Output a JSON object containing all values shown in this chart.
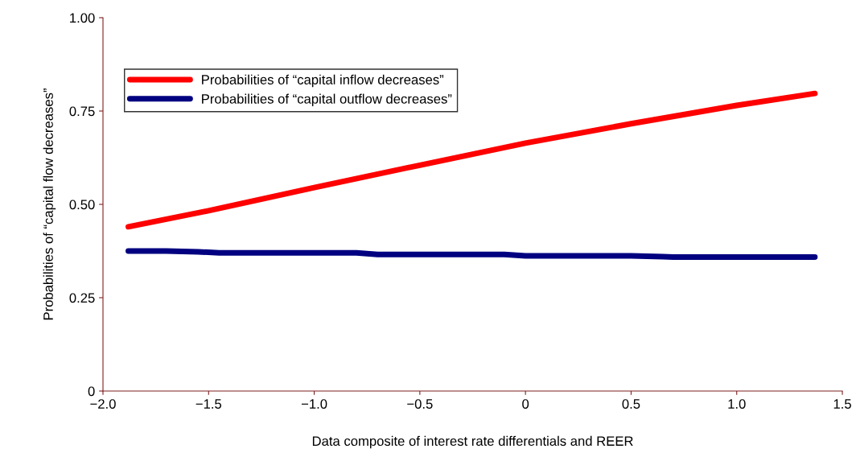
{
  "chart_data": {
    "type": "line",
    "xlabel": "Data composite of interest rate differentials and REER",
    "ylabel": "Probabilities of “capital flow decreases”",
    "xlim": [
      -2.0,
      1.5
    ],
    "xticks": [
      {
        "value": -2.0,
        "label": "−2.0"
      },
      {
        "value": -1.5,
        "label": "−1.5"
      },
      {
        "value": -1.0,
        "label": "−1.0"
      },
      {
        "value": -0.5,
        "label": "−0.5"
      },
      0,
      {
        "value": 0.5,
        "label": "0.5"
      },
      {
        "value": 1.0,
        "label": "1.0"
      },
      {
        "value": 1.5,
        "label": "1.5"
      }
    ],
    "ylim": [
      0,
      1.0
    ],
    "yticks": [
      0,
      {
        "value": 0.25,
        "label": "0.25"
      },
      {
        "value": 0.5,
        "label": "0.50"
      },
      {
        "value": 0.75,
        "label": "0.75"
      },
      {
        "value": 1.0,
        "label": "1.00"
      }
    ],
    "grid": false,
    "legend": "top left",
    "marker": "none",
    "line_style": "solid",
    "series": [
      {
        "name": "Probabilities of “capital inflow decreases”",
        "color": "#ff0000",
        "x": [
          -1.88,
          -1.5,
          -1.0,
          -0.5,
          0.0,
          0.5,
          1.0,
          1.37
        ],
        "values": [
          0.44,
          0.483,
          0.545,
          0.605,
          0.664,
          0.716,
          0.765,
          0.797
        ]
      },
      {
        "name": "Probabilities of “capital outflow decreases”",
        "color": "#000080",
        "x": [
          -1.88,
          -1.7,
          -1.55,
          -1.45,
          -0.8,
          -0.7,
          -0.1,
          0.0,
          0.5,
          0.65,
          0.7,
          1.0,
          1.37
        ],
        "values": [
          0.375,
          0.375,
          0.373,
          0.37,
          0.37,
          0.366,
          0.366,
          0.362,
          0.362,
          0.36,
          0.359,
          0.359,
          0.359
        ]
      }
    ]
  }
}
